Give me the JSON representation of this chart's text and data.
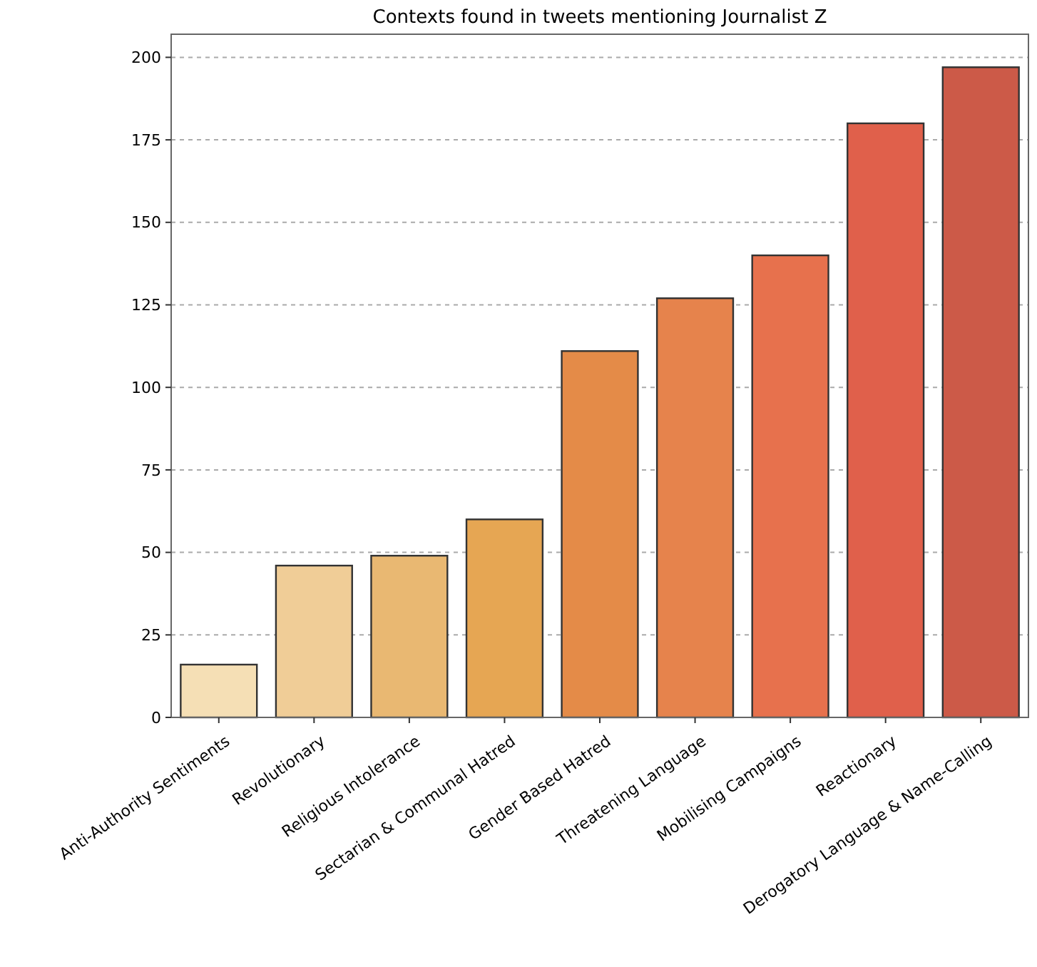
{
  "chart_data": {
    "type": "bar",
    "title": "Contexts found in tweets mentioning Journalist Z",
    "categories": [
      "Anti-Authority Sentiments",
      "Revolutionary",
      "Religious Intolerance",
      "Sectarian & Communal Hatred",
      "Gender Based Hatred",
      "Threatening Language",
      "Mobilising Campaigns",
      "Reactionary",
      "Derogatory Language & Name-Calling"
    ],
    "values": [
      16,
      46,
      49,
      60,
      111,
      127,
      140,
      180,
      197
    ],
    "colors": [
      "#f5dfb5",
      "#f0cd97",
      "#e9b872",
      "#e6a653",
      "#e48b48",
      "#e6834c",
      "#e7714d",
      "#e0604b",
      "#cc5a48"
    ],
    "ylim": [
      0,
      207
    ],
    "yticks": [
      0,
      25,
      50,
      75,
      100,
      125,
      150,
      175,
      200
    ],
    "grid": "y"
  }
}
